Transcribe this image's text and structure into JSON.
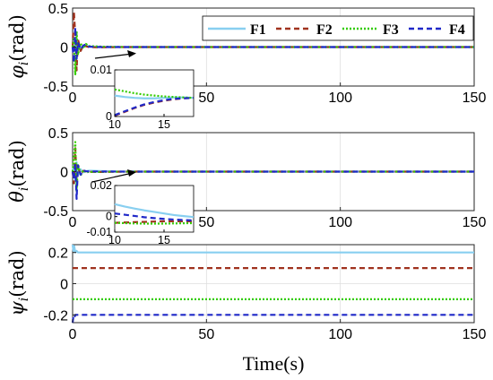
{
  "figure": {
    "xlabel": "Time(s)",
    "legend": {
      "placement": "top-right of first panel",
      "entries": [
        {
          "label": "F1",
          "color": "#88cff0",
          "style": "solid"
        },
        {
          "label": "F2",
          "color": "#a0321e",
          "style": "dashed"
        },
        {
          "label": "F3",
          "color": "#33cc00",
          "style": "dotted"
        },
        {
          "label": "F4",
          "color": "#1f28c8",
          "style": "dashed"
        }
      ]
    }
  },
  "chart_data": [
    {
      "type": "line",
      "panel": "phi",
      "ylabel_symbol": "φ",
      "ylabel_sub": "i",
      "ylabel_unit": "(rad)",
      "xlim": [
        0,
        150
      ],
      "ylim": [
        -0.5,
        0.5
      ],
      "xticks": [
        "0",
        "50",
        "100",
        "150"
      ],
      "yticks": [
        "0.5",
        "0",
        "-0.5"
      ],
      "grid": true,
      "series": [
        {
          "name": "F1",
          "x": [
            0,
            0.5,
            1,
            1.5,
            2,
            3,
            4,
            5,
            6,
            8,
            10,
            20,
            150
          ],
          "y": [
            0,
            -0.05,
            0.12,
            -0.08,
            0.03,
            -0.02,
            0.01,
            0.03,
            0.008,
            0.006,
            0.003,
            0,
            0
          ]
        },
        {
          "name": "F2",
          "x": [
            0,
            0.5,
            1,
            1.5,
            2,
            3,
            4,
            5,
            6,
            8,
            10,
            20,
            150
          ],
          "y": [
            0,
            0.45,
            0.15,
            -0.3,
            0.1,
            -0.05,
            0.02,
            0.01,
            0,
            -0.002,
            -0.003,
            0,
            0
          ]
        },
        {
          "name": "F3",
          "x": [
            0,
            0.5,
            1,
            1.5,
            2,
            3,
            4,
            5,
            6,
            8,
            10,
            20,
            150
          ],
          "y": [
            0,
            0.1,
            -0.35,
            0.2,
            -0.1,
            0.05,
            -0.02,
            0.04,
            0.012,
            0.01,
            0.006,
            0,
            0
          ]
        },
        {
          "name": "F4",
          "x": [
            0,
            0.5,
            1,
            1.5,
            2,
            3,
            4,
            5,
            6,
            8,
            10,
            20,
            150
          ],
          "y": [
            0,
            -0.2,
            0.25,
            -0.15,
            0.06,
            -0.03,
            0.02,
            0.035,
            0.006,
            0.002,
            0,
            0,
            0
          ]
        }
      ],
      "inset": {
        "xlim": [
          10,
          18
        ],
        "ylim": [
          0,
          0.01
        ],
        "xticks": [
          "10",
          "15"
        ],
        "yticks": [
          "0.01",
          "0"
        ],
        "series": [
          {
            "name": "F1",
            "x": [
              10,
              11,
              12,
              13,
              14,
              15,
              16,
              17,
              18
            ],
            "y": [
              0.0045,
              0.0042,
              0.004,
              0.0039,
              0.0039,
              0.004,
              0.0041,
              0.0041,
              0.004
            ]
          },
          {
            "name": "F2",
            "x": [
              10,
              11,
              12,
              13,
              14,
              15,
              16,
              17,
              18
            ],
            "y": [
              0.0002,
              0.001,
              0.0018,
              0.0025,
              0.003,
              0.0034,
              0.0037,
              0.0039,
              0.004
            ]
          },
          {
            "name": "F3",
            "x": [
              10,
              11,
              12,
              13,
              14,
              15,
              16,
              17,
              18
            ],
            "y": [
              0.0058,
              0.0054,
              0.005,
              0.0047,
              0.0045,
              0.0043,
              0.0042,
              0.0041,
              0.004
            ]
          },
          {
            "name": "F4",
            "x": [
              10,
              11,
              12,
              13,
              14,
              15,
              16,
              17,
              18
            ],
            "y": [
              0.0003,
              0.0011,
              0.0019,
              0.0026,
              0.0031,
              0.0035,
              0.0038,
              0.0039,
              0.004
            ]
          }
        ]
      }
    },
    {
      "type": "line",
      "panel": "theta",
      "ylabel_symbol": "θ",
      "ylabel_sub": "i",
      "ylabel_unit": "(rad)",
      "xlim": [
        0,
        150
      ],
      "ylim": [
        -0.5,
        0.5
      ],
      "xticks": [
        "0",
        "50",
        "100",
        "150"
      ],
      "yticks": [
        "0.5",
        "0",
        "-0.5"
      ],
      "grid": true,
      "series": [
        {
          "name": "F1",
          "x": [
            0,
            0.5,
            1,
            1.5,
            2,
            3,
            4,
            5,
            6,
            8,
            10,
            20,
            150
          ],
          "y": [
            0,
            0.1,
            -0.15,
            0.12,
            -0.05,
            0.03,
            -0.01,
            0.006,
            0.012,
            0.01,
            0.008,
            0,
            0
          ]
        },
        {
          "name": "F2",
          "x": [
            0,
            0.5,
            1,
            1.5,
            2,
            3,
            4,
            5,
            6,
            8,
            10,
            20,
            150
          ],
          "y": [
            0,
            -0.15,
            0.3,
            -0.1,
            0.05,
            -0.03,
            0.01,
            0.002,
            -0.002,
            -0.003,
            -0.004,
            0,
            0
          ]
        },
        {
          "name": "F3",
          "x": [
            0,
            0.5,
            1,
            1.5,
            2,
            3,
            4,
            5,
            6,
            8,
            10,
            20,
            150
          ],
          "y": [
            0,
            0.2,
            0.38,
            -0.25,
            0.1,
            -0.05,
            0.02,
            -0.01,
            -0.004,
            -0.004,
            -0.004,
            0,
            0
          ]
        },
        {
          "name": "F4",
          "x": [
            0,
            0.5,
            1,
            1.5,
            2,
            3,
            4,
            5,
            6,
            8,
            10,
            20,
            150
          ],
          "y": [
            0,
            -0.1,
            0.1,
            -0.35,
            0.08,
            -0.04,
            0.015,
            0.005,
            0.003,
            0.002,
            0.002,
            0,
            0
          ]
        }
      ],
      "inset": {
        "xlim": [
          10,
          18
        ],
        "ylim": [
          -0.01,
          0.02
        ],
        "xticks": [
          "10",
          "15"
        ],
        "yticks": [
          "0.02",
          "0",
          "-0.01"
        ],
        "series": [
          {
            "name": "F1",
            "x": [
              10,
              11,
              12,
              13,
              14,
              15,
              16,
              17,
              18
            ],
            "y": [
              0.008,
              0.0065,
              0.0052,
              0.004,
              0.003,
              0.002,
              0.001,
              0.0003,
              -0.0003
            ]
          },
          {
            "name": "F2",
            "x": [
              10,
              11,
              12,
              13,
              14,
              15,
              16,
              17,
              18
            ],
            "y": [
              -0.004,
              -0.0038,
              -0.0036,
              -0.0034,
              -0.0032,
              -0.003,
              -0.003,
              -0.003,
              -0.003
            ]
          },
          {
            "name": "F3",
            "x": [
              10,
              11,
              12,
              13,
              14,
              15,
              16,
              17,
              18
            ],
            "y": [
              -0.004,
              -0.0042,
              -0.0044,
              -0.0045,
              -0.0045,
              -0.0045,
              -0.0044,
              -0.0043,
              -0.0042
            ]
          },
          {
            "name": "F4",
            "x": [
              10,
              11,
              12,
              13,
              14,
              15,
              16,
              17,
              18
            ],
            "y": [
              0.002,
              0.0012,
              0.0004,
              -0.0004,
              -0.001,
              -0.0015,
              -0.0019,
              -0.0022,
              -0.0025
            ]
          }
        ]
      }
    },
    {
      "type": "line",
      "panel": "psi",
      "ylabel_symbol": "ψ",
      "ylabel_sub": "i",
      "ylabel_unit": "(rad)",
      "xlim": [
        0,
        150
      ],
      "ylim": [
        -0.25,
        0.25
      ],
      "xticks": [
        "0",
        "50",
        "100",
        "150"
      ],
      "yticks": [
        "0.2",
        "0",
        "-0.2"
      ],
      "grid": true,
      "series": [
        {
          "name": "F1",
          "x": [
            0,
            0.3,
            0.6,
            1,
            1.5,
            2,
            150
          ],
          "y": [
            0.25,
            0.21,
            0.24,
            0.2,
            0.21,
            0.2,
            0.2
          ]
        },
        {
          "name": "F2",
          "x": [
            0,
            0.5,
            1,
            150
          ],
          "y": [
            0.1,
            0.1,
            0.1,
            0.1
          ]
        },
        {
          "name": "F3",
          "x": [
            0,
            0.5,
            1,
            150
          ],
          "y": [
            -0.1,
            -0.1,
            -0.1,
            -0.1
          ]
        },
        {
          "name": "F4",
          "x": [
            0,
            0.3,
            0.6,
            1,
            150
          ],
          "y": [
            -0.25,
            -0.21,
            -0.22,
            -0.2,
            -0.2
          ]
        }
      ]
    }
  ]
}
